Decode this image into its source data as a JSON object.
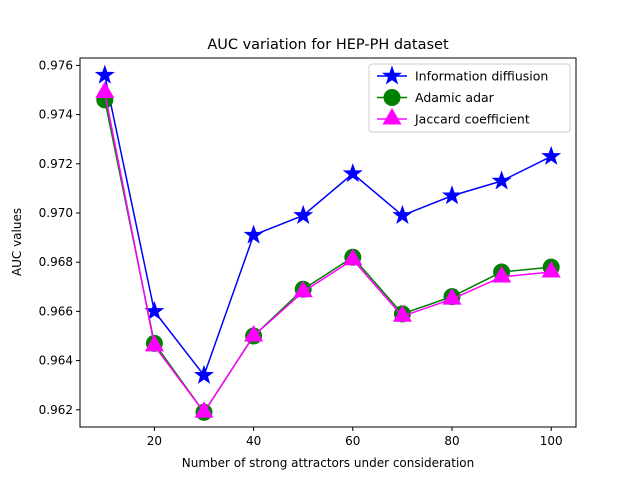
{
  "chart_data": {
    "type": "line",
    "title": "AUC variation for HEP-PH dataset",
    "xlabel": "Number of strong attractors under consideration",
    "ylabel": "AUC values",
    "x": [
      10,
      20,
      30,
      40,
      50,
      60,
      70,
      80,
      90,
      100
    ],
    "xlim": [
      5,
      105
    ],
    "ylim": [
      0.9613,
      0.9763
    ],
    "xticks": [
      20,
      40,
      60,
      80,
      100
    ],
    "yticks": [
      0.962,
      0.964,
      0.966,
      0.968,
      0.97,
      0.972,
      0.974,
      0.976
    ],
    "ytick_labels": [
      "0.962",
      "0.964",
      "0.966",
      "0.968",
      "0.970",
      "0.972",
      "0.974",
      "0.976"
    ],
    "grid": false,
    "legend_position": "top-right",
    "series": [
      {
        "name": "Information diffiusion",
        "color": "#0000ff",
        "marker": "star",
        "values": [
          0.9756,
          0.966,
          0.9634,
          0.9691,
          0.9699,
          0.9716,
          0.9699,
          0.9707,
          0.9713,
          0.9723
        ]
      },
      {
        "name": "Adamic adar",
        "color": "#008000",
        "marker": "circle",
        "values": [
          0.9746,
          0.9647,
          0.9619,
          0.965,
          0.9669,
          0.9682,
          0.9659,
          0.9666,
          0.9676,
          0.9678
        ]
      },
      {
        "name": "Jaccard coefficient",
        "color": "#ff00ff",
        "marker": "triangle",
        "values": [
          0.9749,
          0.9646,
          0.9619,
          0.965,
          0.9668,
          0.9681,
          0.9658,
          0.9665,
          0.9674,
          0.9676
        ]
      }
    ]
  }
}
